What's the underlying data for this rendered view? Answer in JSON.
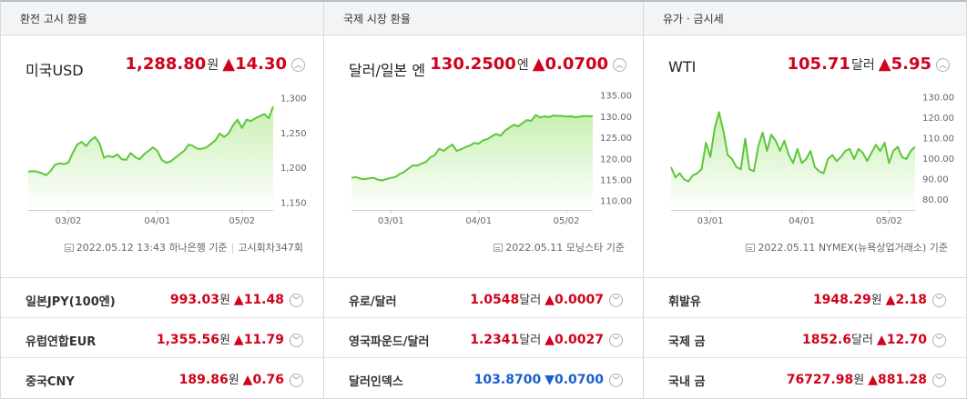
{
  "panels": [
    {
      "header": "환전 고시 환율",
      "main": {
        "name": "미국USD",
        "value": "1,288.80",
        "unit": "원",
        "change": "14.30",
        "direction": "up"
      },
      "source": {
        "text": "2022.05.12 13:43 하나은행 기준",
        "extra": "고시회차347회"
      },
      "rows": [
        {
          "name": "일본JPY(100엔)",
          "value": "993.03",
          "unit": "원",
          "change": "11.48",
          "direction": "up"
        },
        {
          "name": "유럽연합EUR",
          "value": "1,355.56",
          "unit": "원",
          "change": "11.79",
          "direction": "up"
        },
        {
          "name": "중국CNY",
          "value": "189.86",
          "unit": "원",
          "change": "0.76",
          "direction": "up"
        }
      ]
    },
    {
      "header": "국제 시장 환율",
      "main": {
        "name": "달러/일본 엔",
        "value": "130.2500",
        "unit": "엔",
        "change": "0.0700",
        "direction": "up"
      },
      "source": {
        "text": "2022.05.11 모닝스타 기준",
        "extra": ""
      },
      "rows": [
        {
          "name": "유로/달러",
          "value": "1.0548",
          "unit": "달러",
          "change": "0.0007",
          "direction": "up"
        },
        {
          "name": "영국파운드/달러",
          "value": "1.2341",
          "unit": "달러",
          "change": "0.0027",
          "direction": "up"
        },
        {
          "name": "달러인덱스",
          "value": "103.8700",
          "unit": "",
          "change": "0.0700",
          "direction": "down"
        }
      ]
    },
    {
      "header": "유가 · 금시세",
      "main": {
        "name": "WTI",
        "value": "105.71",
        "unit": "달러",
        "change": "5.95",
        "direction": "up"
      },
      "source": {
        "text": "2022.05.11 NYMEX(뉴욕상업거래소) 기준",
        "extra": ""
      },
      "rows": [
        {
          "name": "휘발유",
          "value": "1948.29",
          "unit": "원",
          "change": "2.18",
          "direction": "up"
        },
        {
          "name": "국제 금",
          "value": "1852.6",
          "unit": "달러",
          "change": "12.70",
          "direction": "up"
        },
        {
          "name": "국내 금",
          "value": "76727.98",
          "unit": "원",
          "change": "881.28",
          "direction": "up"
        }
      ]
    }
  ],
  "icons": {
    "up": "▲",
    "down": "▼",
    "expand": "chevron-circle-icon"
  },
  "colors": {
    "up": "#d0021b",
    "down": "#1a5fd0",
    "line": "#5cc73a",
    "fill_top": "#c9f0b3"
  },
  "chart_data": [
    {
      "type": "area",
      "ylim": [
        1140,
        1310
      ],
      "yticks": [
        "1,300",
        "1,250",
        "1,200",
        "1,150"
      ],
      "ytick_values": [
        1300,
        1250,
        1200,
        1150
      ],
      "xticks": [
        "03/02",
        "04/01",
        "05/02"
      ],
      "xtick_positions": [
        9,
        29,
        48
      ],
      "values": [
        1195,
        1196,
        1195,
        1193,
        1190,
        1196,
        1205,
        1207,
        1206,
        1208,
        1222,
        1234,
        1238,
        1232,
        1240,
        1245,
        1236,
        1215,
        1218,
        1216,
        1220,
        1213,
        1212,
        1222,
        1216,
        1213,
        1220,
        1225,
        1230,
        1225,
        1212,
        1208,
        1210,
        1215,
        1220,
        1225,
        1234,
        1232,
        1228,
        1228,
        1230,
        1235,
        1240,
        1250,
        1245,
        1250,
        1262,
        1270,
        1258,
        1270,
        1268,
        1272,
        1275,
        1278,
        1272,
        1289
      ]
    },
    {
      "type": "area",
      "ylim": [
        108,
        136
      ],
      "yticks": [
        "135.00",
        "130.00",
        "125.00",
        "120.00",
        "115.00",
        "110.00"
      ],
      "ytick_values": [
        135,
        130,
        125,
        120,
        115,
        110
      ],
      "xticks": [
        "03/01",
        "04/01",
        "05/02"
      ],
      "xtick_positions": [
        9,
        29,
        49
      ],
      "values": [
        115.6,
        115.8,
        115.4,
        115.3,
        115.5,
        115.6,
        115.2,
        115.0,
        115.3,
        115.6,
        115.8,
        116.5,
        117.0,
        117.8,
        118.6,
        118.5,
        119.0,
        119.4,
        120.5,
        121.0,
        122.5,
        122.0,
        122.8,
        123.5,
        122.0,
        122.4,
        122.9,
        123.3,
        123.9,
        123.7,
        124.5,
        124.8,
        125.5,
        126.0,
        125.6,
        126.8,
        127.5,
        128.2,
        127.8,
        128.6,
        129.3,
        129.1,
        130.5,
        129.9,
        130.2,
        130.0,
        130.4,
        130.3,
        130.3,
        130.1,
        130.2,
        130.0,
        130.1,
        130.3,
        130.2,
        130.25
      ]
    },
    {
      "type": "area",
      "ylim": [
        75,
        133
      ],
      "yticks": [
        "130.00",
        "120.00",
        "110.00",
        "100.00",
        "90.00",
        "80.00"
      ],
      "ytick_values": [
        130,
        120,
        110,
        100,
        90,
        80
      ],
      "xticks": [
        "03/01",
        "04/01",
        "05/02"
      ],
      "xtick_positions": [
        9,
        30,
        50
      ],
      "values": [
        96,
        91,
        93,
        90,
        89,
        92,
        93,
        95,
        108,
        101,
        115,
        123,
        114,
        102,
        100,
        96,
        95,
        110,
        95,
        94,
        106,
        113,
        104,
        112,
        109,
        104,
        109,
        102,
        98,
        105,
        98,
        100,
        104,
        96,
        94,
        93,
        100,
        102,
        99,
        101,
        104,
        105,
        100,
        105,
        103,
        99,
        103,
        107,
        104,
        108,
        98,
        104,
        106,
        101,
        100,
        104,
        106
      ]
    }
  ]
}
